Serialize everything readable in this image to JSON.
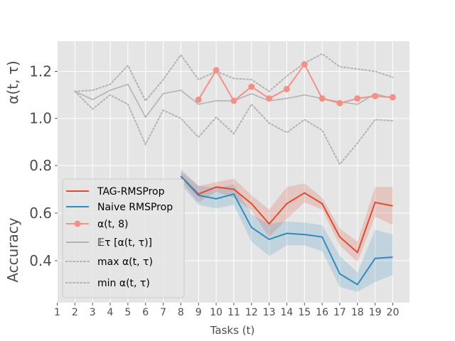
{
  "chart_data": {
    "type": "line",
    "xlabel": "Tasks (t)",
    "x_ticks": [
      "1",
      "2",
      "3",
      "4",
      "5",
      "6",
      "7",
      "8",
      "9",
      "10",
      "11",
      "12",
      "13",
      "14",
      "15",
      "16",
      "17",
      "18",
      "19",
      "20"
    ],
    "xlim": [
      1,
      20.9
    ],
    "top_panel": {
      "ylabel": "α(t, τ)",
      "ylim": [
        0.8,
        1.32
      ],
      "y_ticks": [
        "1.2",
        "1.0"
      ],
      "y_tick_values": [
        1.2,
        1.0
      ],
      "series": [
        {
          "name": "𝔼τ [α(t,τ)]",
          "style": "solid",
          "color": "#b3b3b3",
          "x": [
            2,
            3,
            4,
            5,
            6,
            7,
            8,
            9,
            10,
            11,
            12,
            13,
            14,
            15,
            16,
            17,
            18,
            19,
            20
          ],
          "values": [
            1.115,
            1.08,
            1.12,
            1.145,
            1.005,
            1.105,
            1.12,
            1.06,
            1.075,
            1.075,
            1.105,
            1.075,
            1.085,
            1.1,
            1.085,
            1.07,
            1.06,
            1.105,
            1.085
          ]
        },
        {
          "name": "max α(t,τ)",
          "style": "dotted",
          "color": "#b3b3b3",
          "x": [
            2,
            3,
            4,
            5,
            6,
            7,
            8,
            9,
            10,
            11,
            12,
            13,
            14,
            15,
            16,
            17,
            18,
            19,
            20
          ],
          "values": [
            1.115,
            1.12,
            1.145,
            1.225,
            1.075,
            1.165,
            1.27,
            1.165,
            1.2,
            1.17,
            1.165,
            1.115,
            1.18,
            1.235,
            1.275,
            1.22,
            1.21,
            1.2,
            1.175
          ]
        },
        {
          "name": "min α(t,τ)",
          "style": "dotted",
          "color": "#b3b3b3",
          "x": [
            2,
            3,
            4,
            5,
            6,
            7,
            8,
            9,
            10,
            11,
            12,
            13,
            14,
            15,
            16,
            17,
            18,
            19,
            20
          ],
          "values": [
            1.115,
            1.04,
            1.1,
            1.06,
            0.89,
            1.035,
            1.0,
            0.92,
            1.005,
            0.935,
            1.06,
            0.98,
            0.94,
            0.995,
            0.95,
            0.805,
            0.895,
            0.995,
            0.99
          ]
        },
        {
          "name": "α(t, 8)",
          "style": "markers",
          "color": "#f4908a",
          "x": [
            9,
            10,
            11,
            12,
            13,
            14,
            15,
            16,
            17,
            18,
            19,
            20
          ],
          "values": [
            1.08,
            1.205,
            1.075,
            1.135,
            1.085,
            1.125,
            1.23,
            1.085,
            1.065,
            1.085,
            1.095,
            1.09
          ]
        }
      ]
    },
    "bottom_panel": {
      "ylabel": "Accuracy",
      "ylim": [
        0.22,
        0.8
      ],
      "y_ticks": [
        "0.8",
        "0.6",
        "0.4"
      ],
      "y_tick_values": [
        0.8,
        0.6,
        0.4
      ],
      "series": [
        {
          "name": "TAG-RMSProp",
          "color": "#e24a33",
          "x": [
            8,
            9,
            10,
            11,
            12,
            13,
            14,
            15,
            16,
            17,
            18,
            19,
            20
          ],
          "values": [
            0.755,
            0.68,
            0.71,
            0.7,
            0.64,
            0.555,
            0.64,
            0.685,
            0.64,
            0.5,
            0.435,
            0.645,
            0.63
          ],
          "upper": [
            0.775,
            0.715,
            0.73,
            0.745,
            0.675,
            0.615,
            0.71,
            0.725,
            0.665,
            0.535,
            0.48,
            0.71,
            0.71
          ],
          "lower": [
            0.735,
            0.645,
            0.69,
            0.665,
            0.61,
            0.5,
            0.575,
            0.645,
            0.615,
            0.465,
            0.395,
            0.585,
            0.55
          ]
        },
        {
          "name": "Naive RMSProp",
          "color": "#348abd",
          "x": [
            8,
            9,
            10,
            11,
            12,
            13,
            14,
            15,
            16,
            17,
            18,
            19,
            20
          ],
          "values": [
            0.755,
            0.675,
            0.66,
            0.68,
            0.54,
            0.49,
            0.515,
            0.51,
            0.5,
            0.345,
            0.3,
            0.41,
            0.415
          ],
          "upper": [
            0.785,
            0.715,
            0.705,
            0.72,
            0.595,
            0.555,
            0.565,
            0.56,
            0.55,
            0.42,
            0.35,
            0.53,
            0.51
          ],
          "lower": [
            0.72,
            0.635,
            0.62,
            0.635,
            0.48,
            0.42,
            0.465,
            0.465,
            0.44,
            0.29,
            0.27,
            0.31,
            0.34
          ]
        }
      ]
    },
    "legend": {
      "placement": "lower-left",
      "entries": [
        {
          "label": "TAG-RMSProp",
          "color": "#e24a33",
          "style": "solid"
        },
        {
          "label": "Naive RMSProp",
          "color": "#348abd",
          "style": "solid"
        },
        {
          "label": "α(t, 8)",
          "color": "#f4908a",
          "style": "markers"
        },
        {
          "label": "𝔼τ  [α(t, τ)]",
          "color": "#b3b3b3",
          "style": "solid"
        },
        {
          "label": "max α(t, τ)",
          "color": "#b3b3b3",
          "style": "dotted"
        },
        {
          "label": "min α(t, τ)",
          "color": "#b3b3b3",
          "style": "dotted"
        }
      ]
    }
  }
}
